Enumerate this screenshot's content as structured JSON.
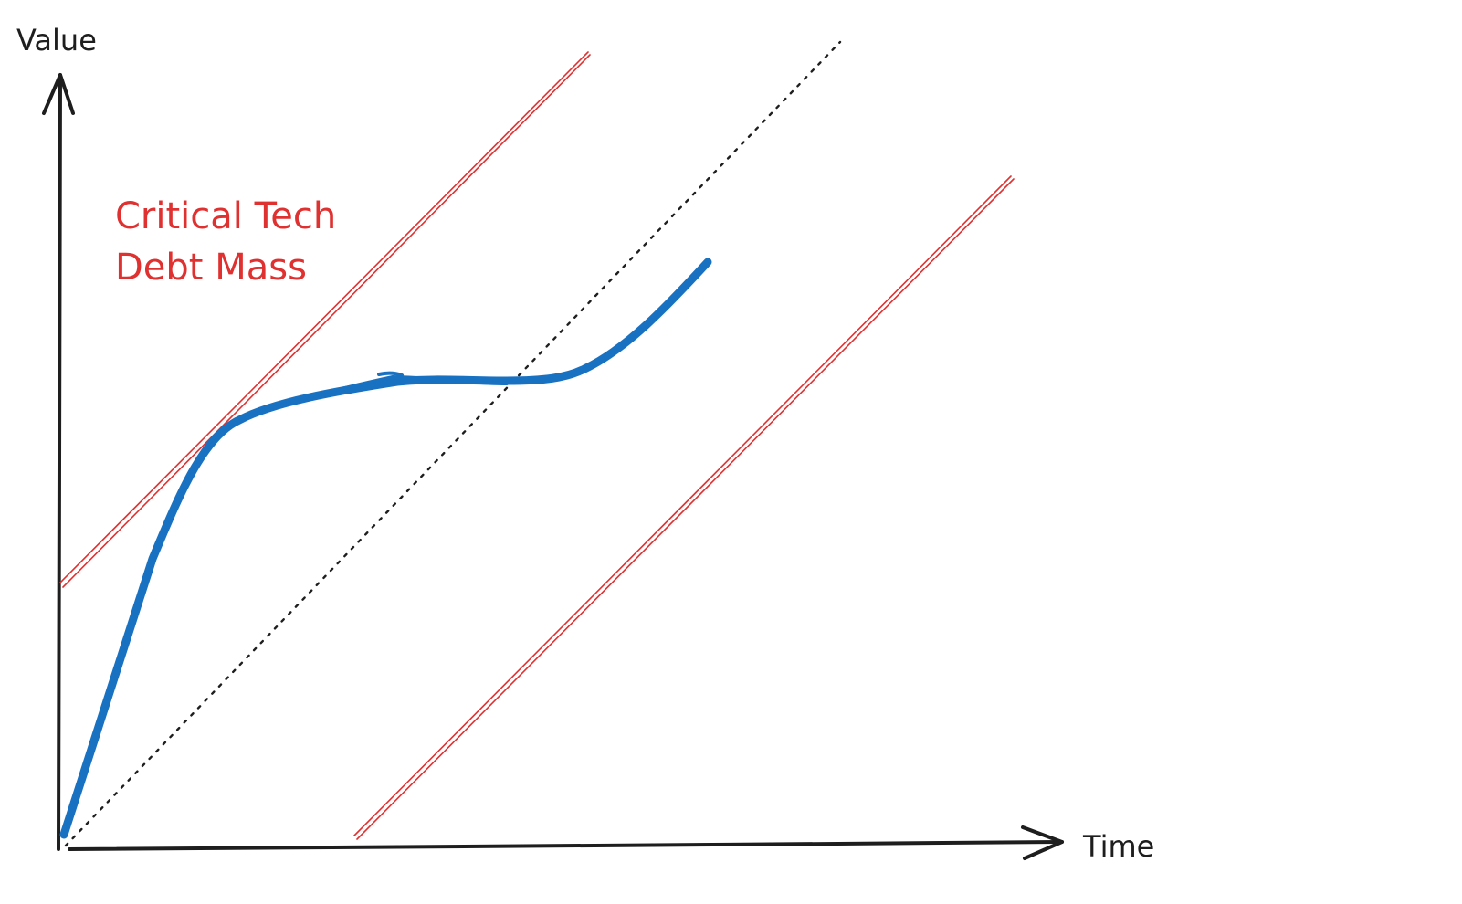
{
  "axes": {
    "y_label": "Value",
    "x_label": "Time",
    "color": "#1e1e1e"
  },
  "annotation": {
    "line1": "Critical Tech",
    "line2": "Debt Mass",
    "color": "#e03131"
  },
  "colors": {
    "value_curve": "#1971c2",
    "bound_lines": "#e03131",
    "diagonal": "#1e1e1e"
  }
}
